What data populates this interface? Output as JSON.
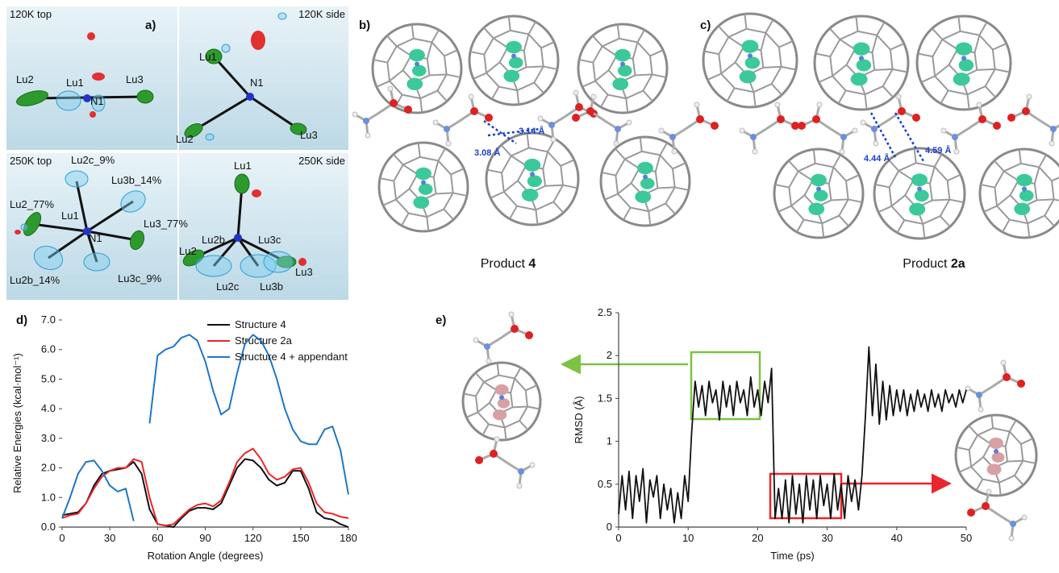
{
  "panel_a": {
    "label": "a)",
    "boxes": [
      {
        "title": "120K top",
        "atoms": [
          "Lu2",
          "Lu1",
          "N1",
          "Lu3"
        ]
      },
      {
        "title": "120K side",
        "atoms": [
          "Lu1",
          "N1",
          "Lu2",
          "Lu3"
        ]
      },
      {
        "title": "250K top",
        "atoms": [
          "Lu2c_9%",
          "Lu3b_14%",
          "Lu2_77%",
          "Lu1",
          "N1",
          "Lu3_77%",
          "Lu2b_14%",
          "Lu3c_9%"
        ]
      },
      {
        "title": "250K side",
        "atoms": [
          "Lu1",
          "Lu2b",
          "Lu3c",
          "Lu2",
          "Lu3",
          "Lu2c",
          "Lu3b"
        ]
      }
    ]
  },
  "panel_b": {
    "label": "b)",
    "distances": [
      "3.14 Å",
      "3.08 Å"
    ],
    "caption": {
      "text": "Product ",
      "compound": "4"
    }
  },
  "panel_c": {
    "label": "c)",
    "distances": [
      "4.44 Å",
      "4.59 Å"
    ],
    "caption": {
      "text": "Product ",
      "compound": "2a"
    }
  },
  "chart_data": [
    {
      "type": "line",
      "panel_label": "d)",
      "xlabel": "Rotation Angle (degrees)",
      "ylabel": "Relative Energies (kcal·mol⁻¹)",
      "x": [
        0,
        5,
        10,
        15,
        20,
        25,
        30,
        35,
        40,
        45,
        50,
        55,
        60,
        65,
        70,
        75,
        80,
        85,
        90,
        95,
        100,
        105,
        110,
        115,
        120,
        125,
        130,
        135,
        140,
        145,
        150,
        155,
        160,
        165,
        170,
        175,
        180
      ],
      "xlim": [
        0,
        180
      ],
      "xticks": [
        0,
        30,
        60,
        90,
        120,
        150,
        180
      ],
      "ylim": [
        0,
        7
      ],
      "yticks": [
        {
          "value": 0,
          "label": "0.0"
        },
        {
          "value": 1,
          "label": "1.0"
        },
        {
          "value": 2,
          "label": "2.0"
        },
        {
          "value": 3,
          "label": "3.0"
        },
        {
          "value": 4,
          "label": "4.0"
        },
        {
          "value": 5,
          "label": "5.0"
        },
        {
          "value": 6,
          "label": "6.0"
        },
        {
          "value": 7,
          "label": "7.0"
        }
      ],
      "legend": "upper right",
      "series": [
        {
          "name": "Structure 4",
          "color": "#111111",
          "values": [
            0.4,
            0.45,
            0.5,
            0.8,
            1.4,
            1.8,
            1.9,
            1.95,
            2.0,
            2.2,
            1.8,
            0.6,
            0.1,
            0.05,
            0.0,
            0.3,
            0.55,
            0.65,
            0.65,
            0.6,
            0.8,
            1.4,
            2.0,
            2.3,
            2.25,
            2.0,
            1.6,
            1.4,
            1.5,
            1.9,
            1.9,
            1.3,
            0.5,
            0.3,
            0.25,
            0.1,
            0.0
          ]
        },
        {
          "name": "Structure 2a",
          "color": "#e8262b",
          "values": [
            0.3,
            0.4,
            0.45,
            0.8,
            1.3,
            1.7,
            1.9,
            2.0,
            2.0,
            2.3,
            2.2,
            1.0,
            0.1,
            0.05,
            0.1,
            0.35,
            0.6,
            0.75,
            0.8,
            0.7,
            0.9,
            1.5,
            2.2,
            2.5,
            2.65,
            2.3,
            1.8,
            1.6,
            1.7,
            1.95,
            2.0,
            1.5,
            0.8,
            0.5,
            0.45,
            0.35,
            0.3
          ]
        },
        {
          "name": "Structure 4 + appendant",
          "color": "#1f77c4",
          "values": [
            0.3,
            1.0,
            1.8,
            2.2,
            2.25,
            1.9,
            1.4,
            1.2,
            1.3,
            0.2,
            null,
            3.5,
            5.8,
            6.0,
            6.1,
            6.4,
            6.5,
            6.3,
            5.6,
            4.6,
            3.8,
            4.0,
            5.2,
            6.2,
            6.5,
            6.3,
            5.8,
            5.0,
            4.0,
            3.3,
            2.9,
            2.8,
            2.8,
            3.3,
            3.4,
            2.6,
            1.1
          ]
        }
      ]
    },
    {
      "type": "line",
      "panel_label": "e)",
      "xlabel": "Time (ps)",
      "ylabel": "RMSD (Å)",
      "x": [
        0,
        0.5,
        1,
        1.5,
        2,
        2.5,
        3,
        3.5,
        4,
        4.5,
        5,
        5.5,
        6,
        6.5,
        7,
        7.5,
        8,
        8.5,
        9,
        9.5,
        10,
        10.5,
        11,
        11.5,
        12,
        12.5,
        13,
        13.5,
        14,
        14.5,
        15,
        15.5,
        16,
        16.5,
        17,
        17.5,
        18,
        18.5,
        19,
        19.5,
        20,
        20.5,
        21,
        21.5,
        22,
        22.5,
        23,
        23.5,
        24,
        24.5,
        25,
        25.5,
        26,
        26.5,
        27,
        27.5,
        28,
        28.5,
        29,
        29.5,
        30,
        30.5,
        31,
        31.5,
        32,
        32.5,
        33,
        33.5,
        34,
        34.5,
        35,
        35.5,
        36,
        36.5,
        37,
        37.5,
        38,
        38.5,
        39,
        39.5,
        40,
        40.5,
        41,
        41.5,
        42,
        42.5,
        43,
        43.5,
        44,
        44.5,
        45,
        45.5,
        46,
        46.5,
        47,
        47.5,
        48,
        48.5,
        49,
        49.5,
        50
      ],
      "xlim": [
        0,
        50
      ],
      "xticks": [
        0,
        10,
        20,
        30,
        40,
        50
      ],
      "ylim": [
        0,
        2.5
      ],
      "yticks": [
        0,
        0.5,
        1,
        1.5,
        2,
        2.5
      ],
      "series": [
        {
          "color": "#111111",
          "values": [
            0.15,
            0.6,
            0.2,
            0.65,
            0.1,
            0.6,
            0.3,
            0.68,
            0.05,
            0.55,
            0.35,
            0.6,
            0.1,
            0.5,
            0.2,
            0.45,
            0.05,
            0.4,
            0.1,
            0.6,
            0.3,
            1.1,
            1.7,
            1.4,
            1.65,
            1.3,
            1.7,
            1.45,
            1.6,
            1.25,
            1.7,
            1.4,
            1.65,
            1.3,
            1.7,
            1.45,
            1.6,
            1.3,
            1.75,
            1.4,
            1.6,
            1.3,
            1.7,
            1.45,
            1.85,
            0.1,
            0.45,
            0.1,
            0.55,
            0.05,
            0.6,
            0.15,
            0.5,
            0.05,
            0.6,
            0.2,
            0.55,
            0.1,
            0.6,
            0.25,
            0.5,
            0.1,
            0.62,
            0.2,
            0.5,
            0.1,
            0.6,
            0.3,
            0.55,
            0.2,
            0.6,
            1.3,
            2.1,
            1.3,
            1.9,
            1.2,
            1.7,
            1.25,
            1.65,
            1.3,
            1.6,
            1.35,
            1.6,
            1.3,
            1.55,
            1.35,
            1.6,
            1.4,
            1.55,
            1.35,
            1.6,
            1.4,
            1.55,
            1.35,
            1.6,
            1.45,
            1.55,
            1.4,
            1.6,
            1.45,
            1.6
          ]
        }
      ]
    }
  ]
}
